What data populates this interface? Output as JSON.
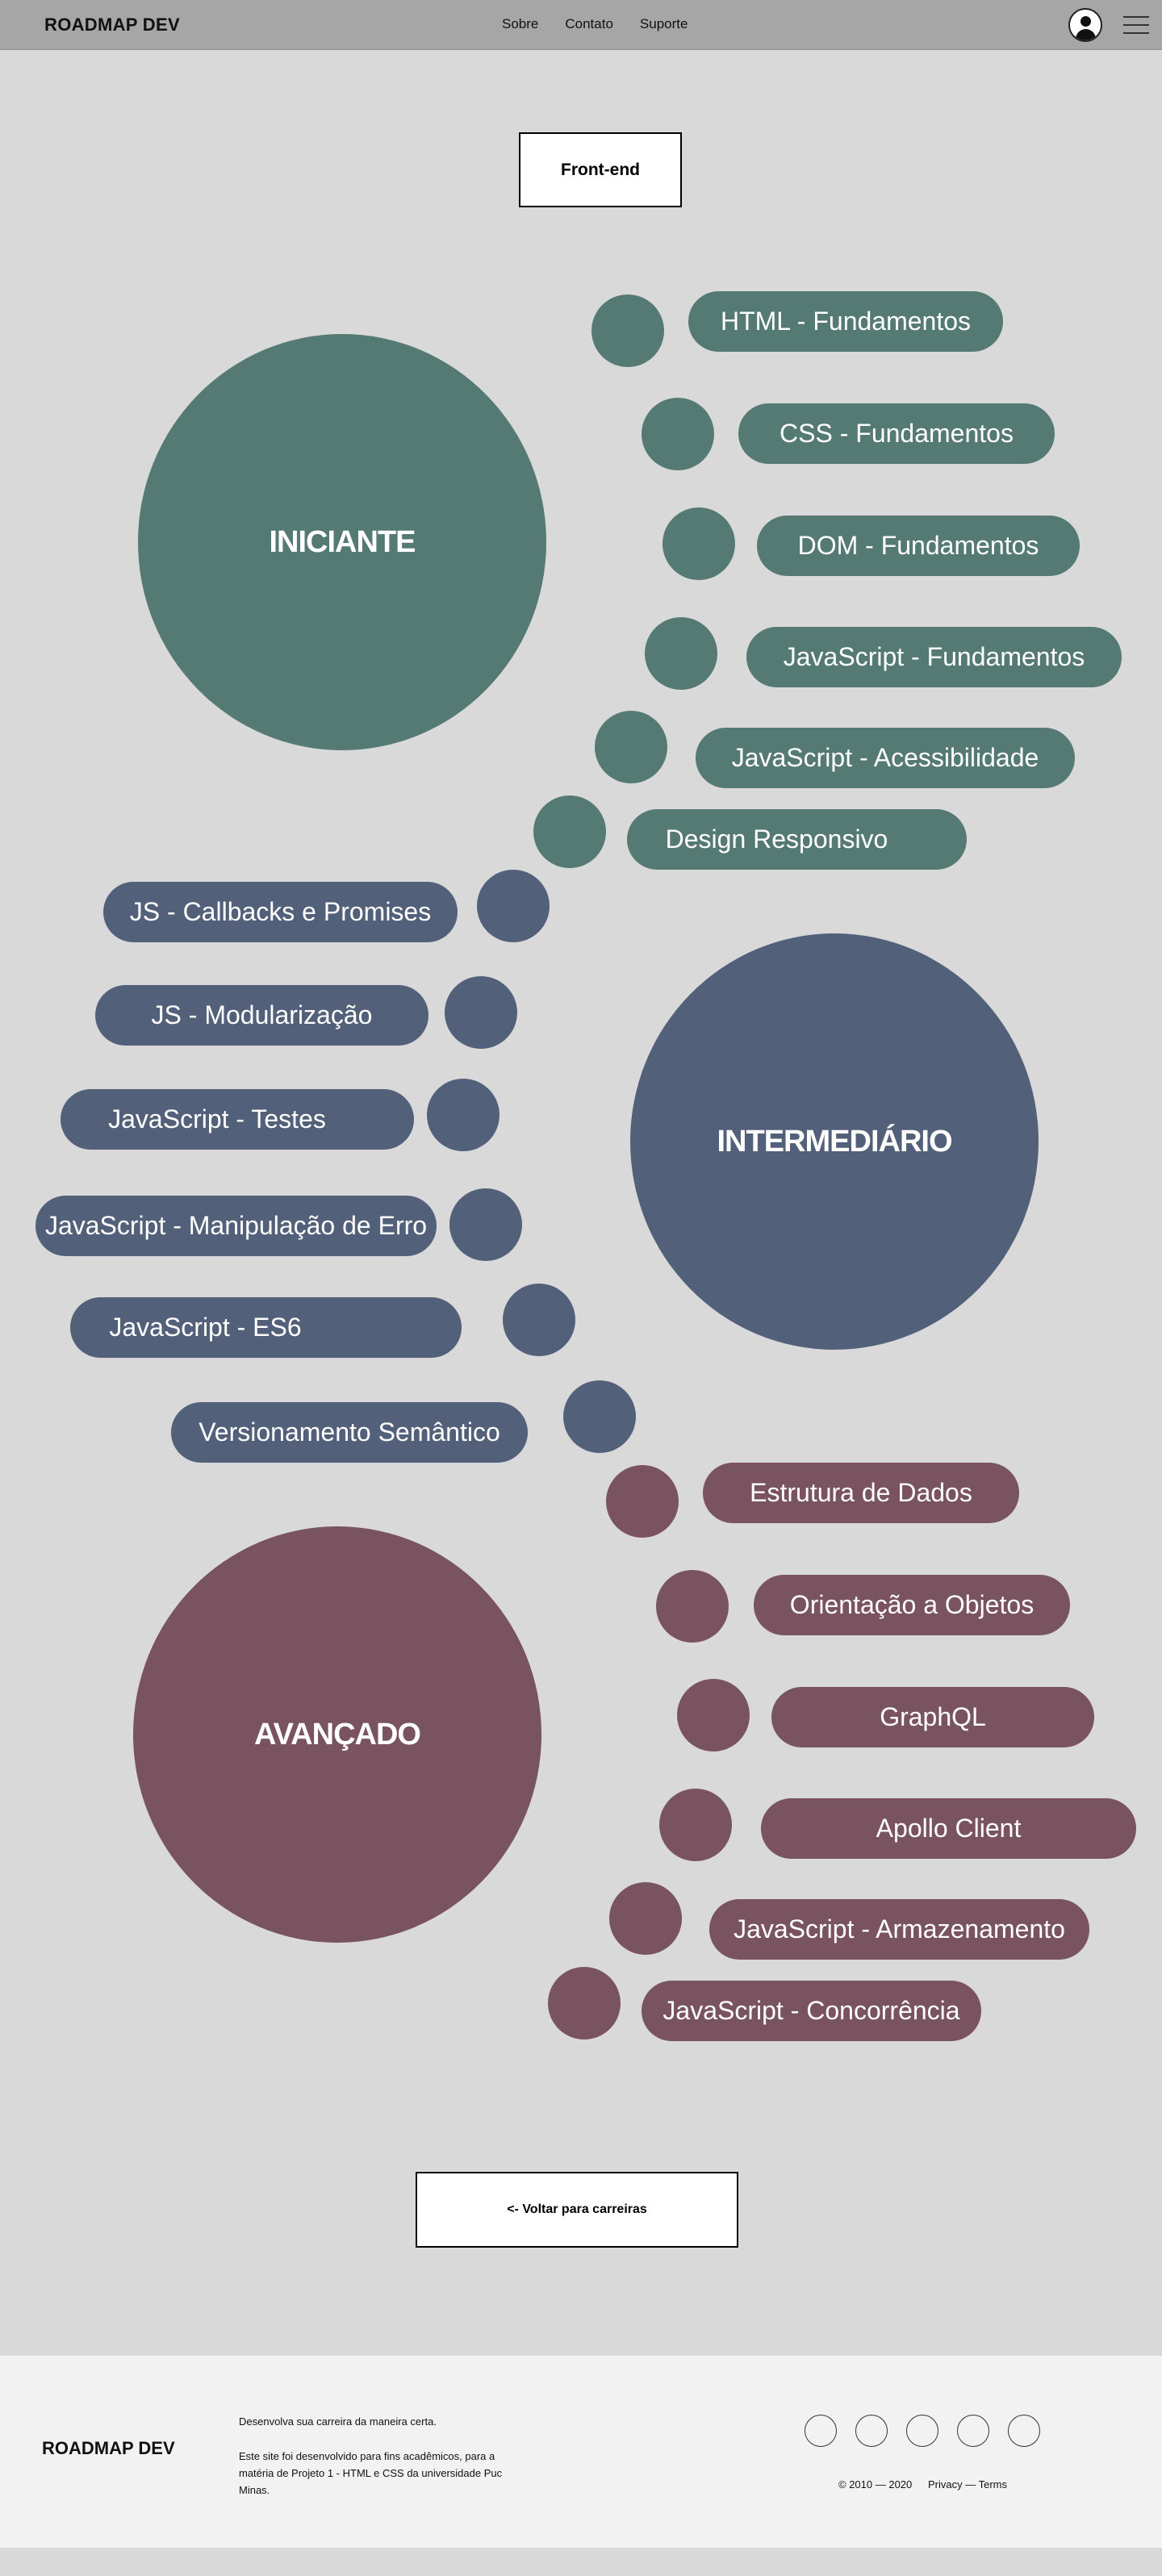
{
  "header": {
    "logo": "ROADMAP DEV",
    "nav": [
      "Sobre",
      "Contato",
      "Suporte"
    ]
  },
  "page": {
    "track_button": "Front-end",
    "back_button": "<- Voltar para carreiras"
  },
  "colors": {
    "iniciante": "#547a73",
    "intermediario": "#536079",
    "avancado": "#79535f",
    "header_bg": "#a6a6a6",
    "page_bg": "#d9d9d9"
  },
  "levels": [
    {
      "title": "INICIANTE",
      "topics": [
        "HTML - Fundamentos",
        "CSS - Fundamentos",
        "DOM - Fundamentos",
        "JavaScript - Fundamentos",
        "JavaScript - Acessibilidade",
        "Design Responsivo"
      ]
    },
    {
      "title": "INTERMEDIÁRIO",
      "topics": [
        "JS - Callbacks e Promises",
        "JS - Modularização",
        "JavaScript - Testes",
        "JavaScript - Manipulação de Erro",
        "JavaScript - ES6",
        "Versionamento Semântico"
      ]
    },
    {
      "title": "AVANÇADO",
      "topics": [
        "Estrutura de Dados",
        "Orientação a Objetos",
        "GraphQL",
        "Apollo Client",
        "JavaScript - Armazenamento",
        "JavaScript - Concorrência"
      ]
    }
  ],
  "footer": {
    "logo": "ROADMAP DEV",
    "tagline": "Desenvolva sua carreira da maneira certa.",
    "description": "Este site foi desenvolvido para fins acadêmicos, para a matéria de Projeto 1 - HTML e CSS da universidade Puc Minas.",
    "social_icons": [
      "social-icon-1",
      "social-icon-2",
      "social-icon-3",
      "social-icon-4",
      "social-icon-5"
    ],
    "copyright": "© 2010 — 2020",
    "links": "Privacy — Terms"
  }
}
